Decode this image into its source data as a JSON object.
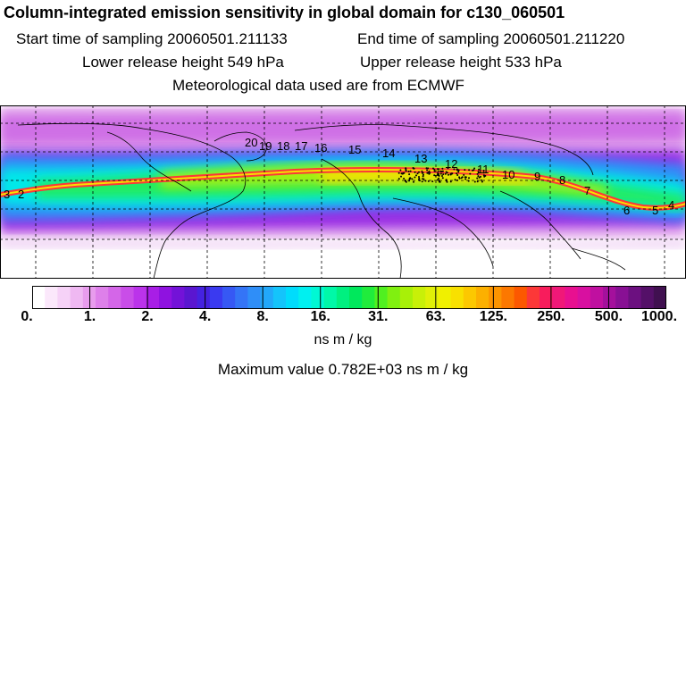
{
  "title": "Column-integrated emission sensitivity in global domain for c130_060501",
  "sampling": {
    "start": "Start time of sampling 20060501.211133",
    "end": "End time of sampling 20060501.211220"
  },
  "release": {
    "lower": "Lower release height  549 hPa",
    "upper": "Upper release height  533 hPa"
  },
  "meteo": "Meteorological data used are from ECMWF",
  "colorbar": {
    "tick_labels": [
      "0.",
      "1.",
      "2.",
      "4.",
      "8.",
      "16.",
      "31.",
      "63.",
      "125.",
      "250.",
      "500.",
      "1000."
    ],
    "units": "ns m / kg",
    "colors": [
      "#ffffff",
      "#fbe8fb",
      "#f6d2f7",
      "#efb8f2",
      "#e89ced",
      "#de80ea",
      "#d466e8",
      "#c94de8",
      "#bb33ea",
      "#a81ee6",
      "#8f12e0",
      "#7312d8",
      "#5a16d0",
      "#4522e0",
      "#3a3af0",
      "#3658f4",
      "#3474f6",
      "#2f8ef8",
      "#22a8fa",
      "#14c4fb",
      "#00dcfc",
      "#00f0f0",
      "#00f8d4",
      "#00f8a8",
      "#00f080",
      "#00e85c",
      "#20ec3c",
      "#50f020",
      "#80f010",
      "#a8f008",
      "#c8f008",
      "#e0f008",
      "#f0f000",
      "#f8e000",
      "#fcc800",
      "#fcb000",
      "#fc9400",
      "#fc7800",
      "#fc5800",
      "#fc3838",
      "#f81c5c",
      "#f01878",
      "#e81090",
      "#d810a0",
      "#c010a0",
      "#a4109c",
      "#881094",
      "#6c1080",
      "#541068",
      "#401050"
    ]
  },
  "max_value": "Maximum value  0.782E+03 ns m / kg",
  "trajectory_labels": [
    "20",
    "19",
    "18",
    "17",
    "16",
    "15",
    "14",
    "13",
    "12",
    "11",
    "10",
    "9",
    "8",
    "7",
    "6",
    "5",
    "4",
    "3",
    "2"
  ],
  "map_colors": {
    "land": "#000000",
    "grid": "#000000"
  }
}
